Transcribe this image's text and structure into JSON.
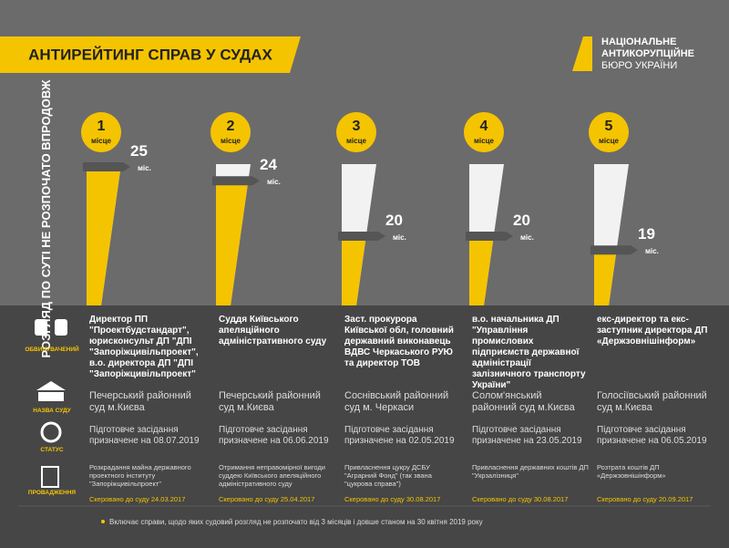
{
  "header": {
    "title": "АНТИРЕЙТИНГ СПРАВ У СУДАХ",
    "logo": [
      "НАЦІОНАЛЬНЕ",
      "АНТИКОРУПЦІЙНЕ",
      "БЮРО УКРАЇНИ"
    ]
  },
  "side_label": "РОЗГЛЯД ПО СУТІ НЕ РОЗПОЧАТО ВПРОДОВЖ",
  "row_labels": [
    "ОБВИНУВАЧЕНИЙ",
    "НАЗВА СУДУ",
    "СТАТУС",
    "ПРОВАДЖЕННЯ"
  ],
  "items": [
    {
      "place": "1",
      "place_label": "місце",
      "months": 25,
      "unit": "міс.",
      "accused": "Директор ПП \"Проектбудстандарт\", юрисконсульт ДП \"ДПІ \"Запоріжцивільпроект\", в.о. директора ДП \"ДПІ \"Запоріжцивільпроект\"",
      "court": "Печерський районний суд м.Києва",
      "status": "Підготовче засідання призначене на 08.07.2019",
      "case": "Розкрадання майна державного проектного інституту \"Запоріжцивільпроект\"",
      "sent": "Скеровано до суду 24.03.2017"
    },
    {
      "place": "2",
      "place_label": "місце",
      "months": 24,
      "unit": "міс.",
      "accused": "Суддя Київського апеляційного адміністративного суду",
      "court": "Печерський районний суд м.Києва",
      "status": "Підготовче засідання призначене на 06.06.2019",
      "case": "Отримання неправомірної вигоди суддею Київського апеляційного адміністративного суду",
      "sent": "Скеровано до суду 25.04.2017"
    },
    {
      "place": "3",
      "place_label": "місце",
      "months": 20,
      "unit": "міс.",
      "accused": "Заст. прокурора Київської обл, головний державний виконавець ВДВС Черкаського РУЮ та директор ТОВ",
      "court": "Соснівський районний суд м. Черкаси",
      "status": "Підготовче засідання призначене на 02.05.2019",
      "case": "Привласнення цукру ДСБУ \"Аграрний Фонд\" (так звана \"цукрова справа\")",
      "sent": "Скеровано до суду 30.08.2017"
    },
    {
      "place": "4",
      "place_label": "місце",
      "months": 20,
      "unit": "міс.",
      "accused": "в.о. начальника ДП \"Управління промислових підприємств державної адміністрації залізничного транспорту України\"",
      "court": "Солом'янський районний суд м.Києва",
      "status": "Підготовче засідання призначене на 23.05.2019",
      "case": "Привласнення державних коштів ДП \"Укрзалізниця\"",
      "sent": "Скеровано до суду 30.08.2017"
    },
    {
      "place": "5",
      "place_label": "місце",
      "months": 19,
      "unit": "міс.",
      "accused": "екс-директор та екс-заступник директора ДП «Держзовнішінформ»",
      "court": "Голосіївський районний суд м.Києва",
      "status": "Підготовче засідання призначене на 06.05.2019",
      "case": "Розтрата коштів ДП «Держзовнішінформ»",
      "sent": "Скеровано до суду 20.09.2017"
    }
  ],
  "footnote": "Включає справи, щодо яких судовий розгляд не розпочато від 3 місяців і довше станом на 30 квітня 2019 року"
}
